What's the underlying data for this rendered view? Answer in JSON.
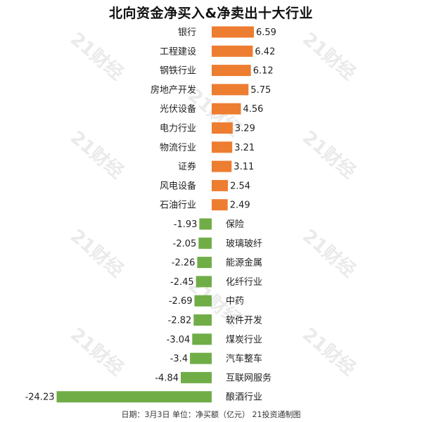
{
  "colors": {
    "positive": "#ED7D31",
    "negative": "#70AD47",
    "text": "#222222",
    "watermark": "#A0A0A0"
  },
  "watermark_text": "21财经",
  "footnote": "日期：3月3日 单位：净买额（亿元） 21投资通制图",
  "chart_data": {
    "type": "bar",
    "orientation": "horizontal",
    "title": "北向资金净买入&净卖出十大行业",
    "categories": [
      "银行",
      "工程建设",
      "钢铁行业",
      "房地产开发",
      "光伏设备",
      "电力行业",
      "物流行业",
      "证券",
      "风电设备",
      "石油行业",
      "保险",
      "玻璃玻纤",
      "能源金属",
      "化纤行业",
      "中药",
      "软件开发",
      "煤炭行业",
      "汽车整车",
      "互联网服务",
      "酿酒行业"
    ],
    "values": [
      6.59,
      6.42,
      6.12,
      5.75,
      4.56,
      3.29,
      3.21,
      3.11,
      2.54,
      2.49,
      -1.93,
      -2.05,
      -2.26,
      -2.45,
      -2.69,
      -2.82,
      -3.04,
      -3.4,
      -4.84,
      -24.23
    ],
    "value_labels": [
      "6.59",
      "6.42",
      "6.12",
      "5.75",
      "4.56",
      "3.29",
      "3.21",
      "3.11",
      "2.54",
      "2.49",
      "-1.93",
      "-2.05",
      "-2.26",
      "-2.45",
      "-2.69",
      "-2.82",
      "-3.04",
      "-3.4",
      "-4.84",
      "-24.23"
    ],
    "xlim": [
      -25,
      10
    ],
    "grid": false,
    "legend": "none"
  }
}
